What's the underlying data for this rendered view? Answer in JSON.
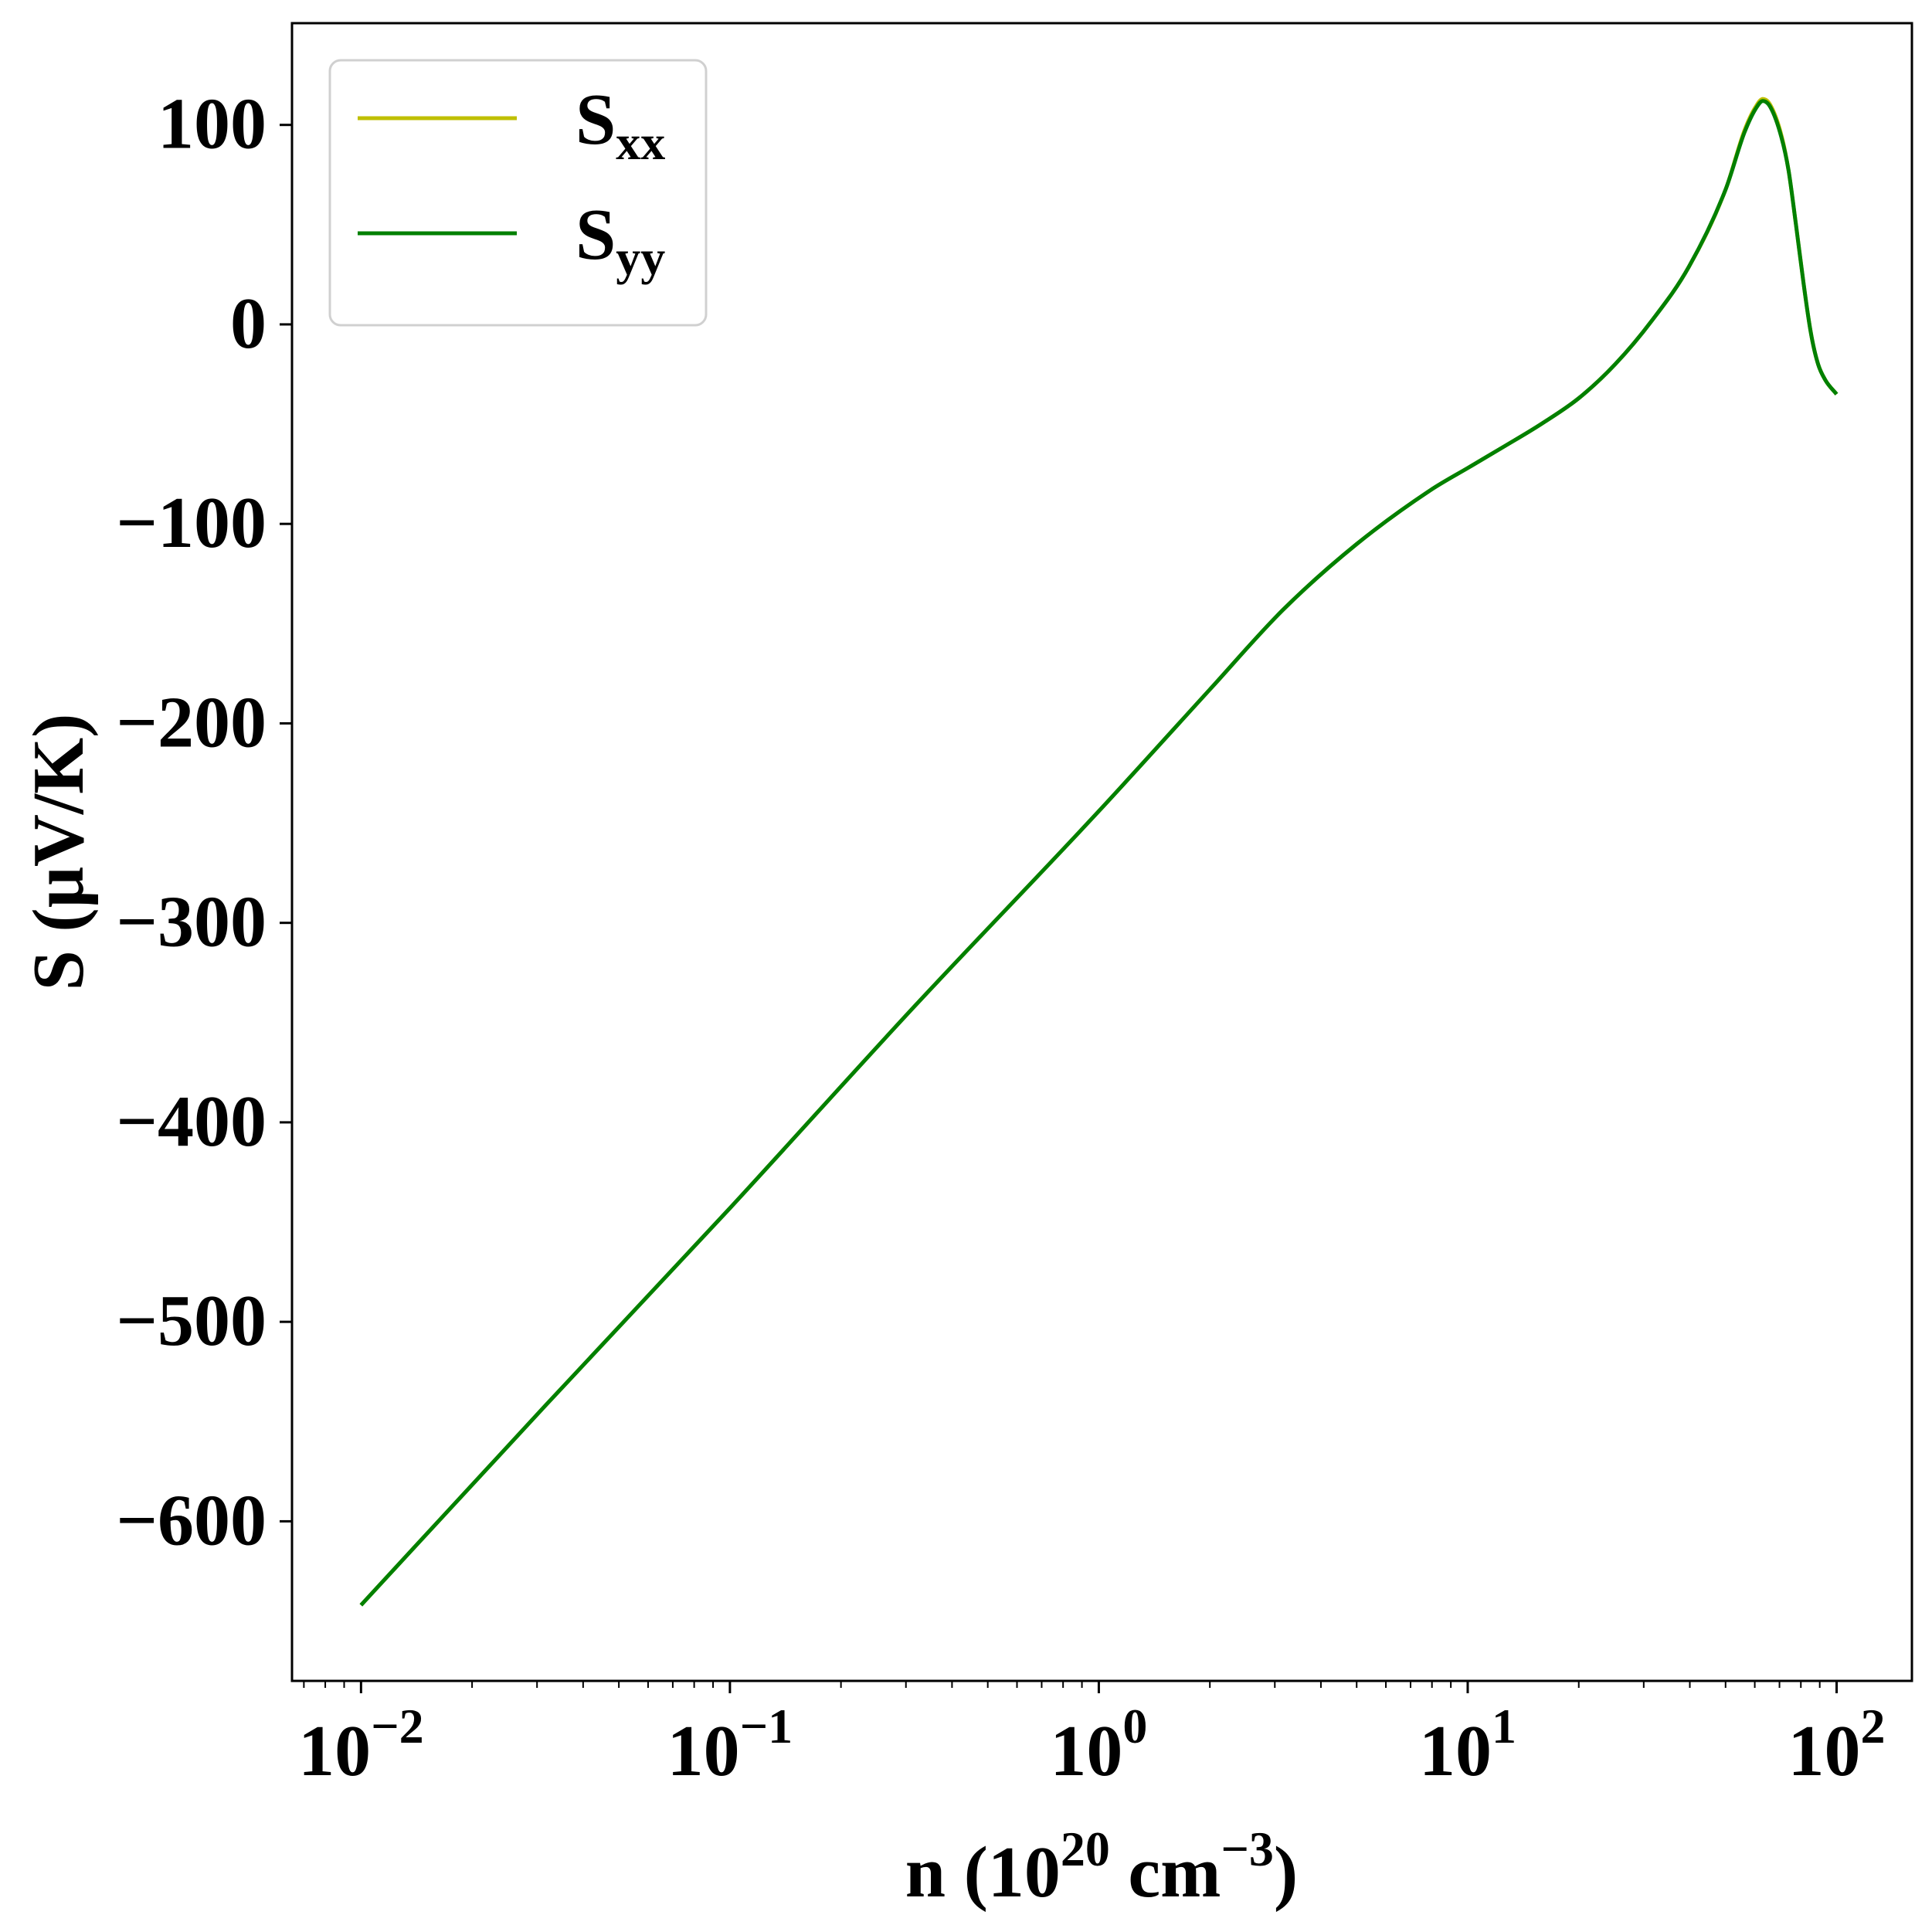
{
  "chart_data": {
    "type": "line",
    "title": "",
    "xlabel": {
      "base": "n (10",
      "exp1": "20",
      "mid": " cm",
      "exp2": "−3",
      "tail": ")"
    },
    "ylabel": "S (μV/K)",
    "xscale": "log",
    "xlim": [
      0.0065,
      160
    ],
    "ylim": [
      -680,
      151
    ],
    "grid": false,
    "legend_position": "top-left",
    "x_ticks": [
      {
        "value": 0.01,
        "base": "10",
        "exp": "−2"
      },
      {
        "value": 0.1,
        "base": "10",
        "exp": "−1"
      },
      {
        "value": 1,
        "base": "10",
        "exp": "0"
      },
      {
        "value": 10,
        "base": "10",
        "exp": "1"
      },
      {
        "value": 100,
        "base": "10",
        "exp": "2"
      }
    ],
    "y_ticks": [
      {
        "value": 100,
        "label": "100"
      },
      {
        "value": 0,
        "label": "0"
      },
      {
        "value": -100,
        "label": "−100"
      },
      {
        "value": -200,
        "label": "−200"
      },
      {
        "value": -300,
        "label": "−300"
      },
      {
        "value": -400,
        "label": "−400"
      },
      {
        "value": -500,
        "label": "−500"
      },
      {
        "value": -600,
        "label": "−600"
      }
    ],
    "x": [
      0.01,
      0.0316,
      0.1,
      0.316,
      1,
      2,
      3.16,
      5.01,
      7.94,
      10,
      12.6,
      15.8,
      20,
      25.1,
      31.6,
      39.8,
      50.1,
      56.2,
      60.3,
      63.1,
      66.1,
      70.8,
      74.1,
      77.6,
      81.3,
      85.1,
      89.1,
      93.3,
      100
    ],
    "series": [
      {
        "name": "S",
        "sub": "xx",
        "color": "#bfbf00",
        "values": [
          -642,
          -542,
          -443,
          -342,
          -244,
          -183,
          -143,
          -110,
          -83,
          -72,
          -61,
          -50,
          -37,
          -20,
          2,
          29,
          68,
          97,
          109,
          113,
          110,
          95,
          77,
          50,
          21,
          -4,
          -20,
          -28,
          -35
        ]
      },
      {
        "name": "S",
        "sub": "yy",
        "color": "#008000",
        "values": [
          -642,
          -542,
          -443,
          -342,
          -244,
          -183,
          -143,
          -110,
          -83,
          -72,
          -61,
          -50,
          -37,
          -20,
          2,
          29,
          68,
          96,
          108,
          112,
          109,
          94,
          77,
          50,
          21,
          -4,
          -20,
          -28,
          -35
        ]
      }
    ]
  }
}
